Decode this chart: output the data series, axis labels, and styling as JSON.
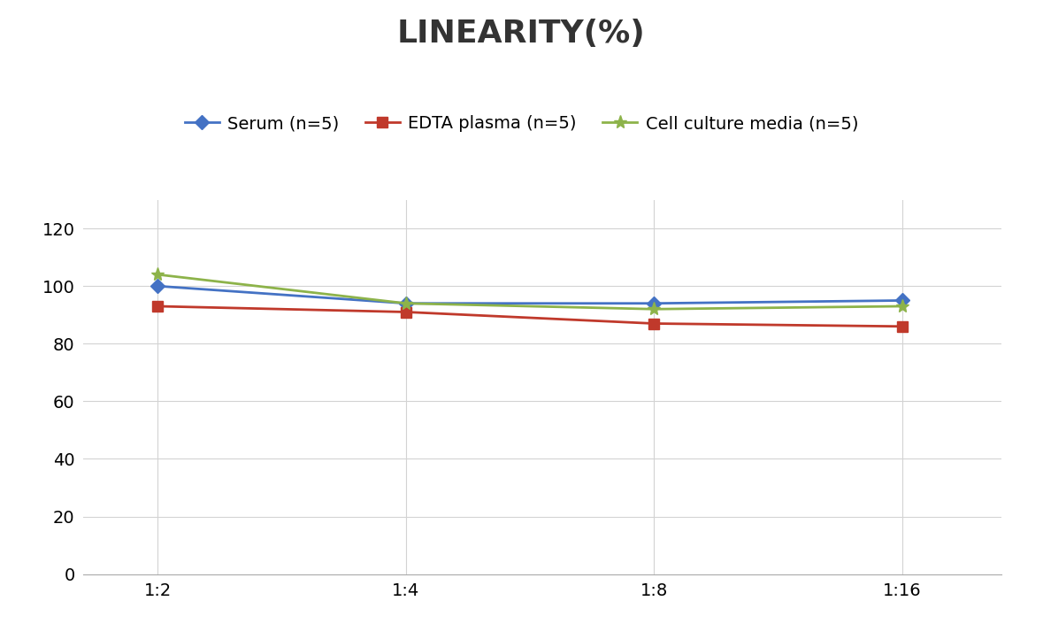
{
  "title": "LINEARITY(%)",
  "x_labels": [
    "1:2",
    "1:4",
    "1:8",
    "1:16"
  ],
  "x_positions": [
    0,
    1,
    2,
    3
  ],
  "series": [
    {
      "label": "Serum (n=5)",
      "values": [
        100,
        94,
        94,
        95
      ],
      "color": "#4472C4",
      "marker": "D",
      "marker_size": 8,
      "linewidth": 2.0
    },
    {
      "label": "EDTA plasma (n=5)",
      "values": [
        93,
        91,
        87,
        86
      ],
      "color": "#C0392B",
      "marker": "s",
      "marker_size": 8,
      "linewidth": 2.0
    },
    {
      "label": "Cell culture media (n=5)",
      "values": [
        104,
        94,
        92,
        93
      ],
      "color": "#8DB34A",
      "marker": "*",
      "marker_size": 11,
      "linewidth": 2.0
    }
  ],
  "ylim": [
    0,
    130
  ],
  "yticks": [
    0,
    20,
    40,
    60,
    80,
    100,
    120
  ],
  "grid_color": "#D3D3D3",
  "background_color": "#FFFFFF",
  "title_fontsize": 26,
  "tick_fontsize": 14,
  "legend_fontsize": 14
}
